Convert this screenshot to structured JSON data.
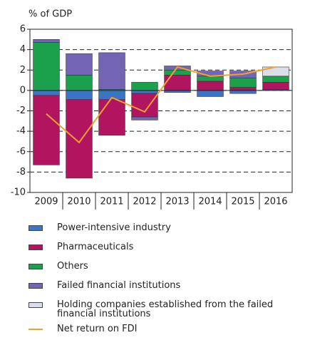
{
  "chart_data": {
    "type": "bar",
    "stacked": true,
    "y_label": "% of GDP",
    "categories": [
      "2009",
      "2010",
      "2011",
      "2012",
      "2013",
      "2014",
      "2015",
      "2016"
    ],
    "series": [
      {
        "name": "Power-intensive industry",
        "color": "#3b74c2",
        "values": [
          -0.5,
          -0.9,
          -0.9,
          -0.3,
          -0.2,
          -0.6,
          -0.3,
          0.1
        ]
      },
      {
        "name": "Pharmaceuticals",
        "color": "#b2155f",
        "values": [
          -6.8,
          -7.7,
          -3.5,
          -2.3,
          1.5,
          0.9,
          0.3,
          0.7
        ]
      },
      {
        "name": "Others",
        "color": "#1ba04c",
        "values": [
          4.7,
          1.5,
          0.1,
          0.8,
          0.5,
          0.5,
          0.9,
          0.6
        ]
      },
      {
        "name": "Failed financial institutions",
        "color": "#7464b4",
        "values": [
          0.3,
          2.1,
          3.6,
          -0.3,
          0.4,
          0.5,
          0.7,
          0
        ]
      },
      {
        "name": "Holding companies established from the failed financial institutions",
        "color": "#d9dee9",
        "values": [
          0,
          0,
          0,
          0,
          0,
          0,
          0,
          0.9
        ]
      },
      {
        "name": "Net return on FDI",
        "color": "#f5a02e",
        "type": "line",
        "values": [
          -2.3,
          -5.1,
          -0.7,
          -2.1,
          2.3,
          1.4,
          1.6,
          2.3
        ]
      }
    ],
    "ylim": [
      -10,
      6
    ],
    "yticks": [
      -10,
      -8,
      -6,
      -4,
      -2,
      0,
      2,
      4,
      6
    ],
    "grid": true
  }
}
